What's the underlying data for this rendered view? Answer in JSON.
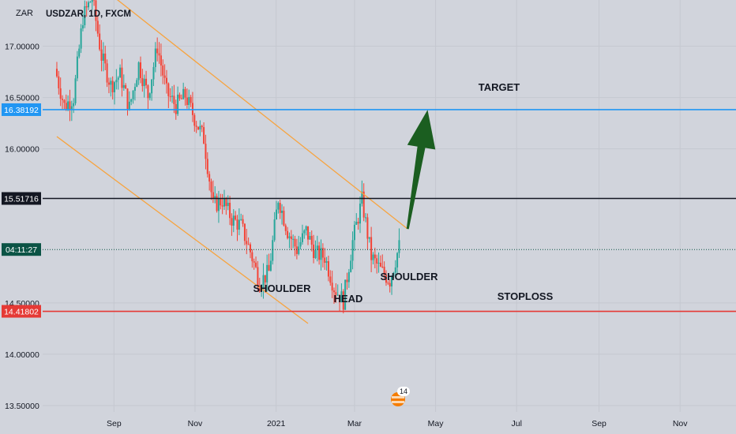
{
  "chart_data": {
    "type": "candlestick",
    "currency": "ZAR",
    "symbol_line": "USDZAR, 1D, FXCM",
    "price_axis": {
      "min": 13.3,
      "max": 17.45,
      "ticks": [
        {
          "value": 17.0,
          "label": "17.00000"
        },
        {
          "value": 16.5,
          "label": "16.50000"
        },
        {
          "value": 16.0,
          "label": "16.00000"
        },
        {
          "value": 14.5,
          "label": "14.50000"
        },
        {
          "value": 14.0,
          "label": "14.00000"
        },
        {
          "value": 13.5,
          "label": "13.50000"
        }
      ]
    },
    "time_axis": {
      "ticks": [
        {
          "label": "Sep",
          "date": "2020-09-01"
        },
        {
          "label": "Nov",
          "date": "2020-11-01"
        },
        {
          "label": "2021",
          "date": "2021-01-01"
        },
        {
          "label": "Mar",
          "date": "2021-03-01"
        },
        {
          "label": "May",
          "date": "2021-05-01"
        },
        {
          "label": "Jul",
          "date": "2021-07-01"
        },
        {
          "label": "Sep",
          "date": "2021-09-01"
        },
        {
          "label": "Nov",
          "date": "2021-11-01"
        }
      ]
    },
    "series": [
      {
        "kind": "daily-close",
        "points": [
          [
            "2020-07-20",
            16.78
          ],
          [
            "2020-07-27",
            16.42
          ],
          [
            "2020-08-03",
            16.5
          ],
          [
            "2020-08-10",
            17.28
          ],
          [
            "2020-08-17",
            17.48
          ],
          [
            "2020-08-24",
            16.9
          ],
          [
            "2020-08-31",
            16.62
          ],
          [
            "2020-09-07",
            16.72
          ],
          [
            "2020-09-14",
            16.4
          ],
          [
            "2020-09-21",
            16.82
          ],
          [
            "2020-09-28",
            16.52
          ],
          [
            "2020-10-05",
            17.0
          ],
          [
            "2020-10-12",
            16.55
          ],
          [
            "2020-10-19",
            16.42
          ],
          [
            "2020-10-26",
            16.52
          ],
          [
            "2020-11-02",
            16.3
          ],
          [
            "2020-11-09",
            16.1
          ],
          [
            "2020-11-16",
            15.45
          ],
          [
            "2020-11-23",
            15.5
          ],
          [
            "2020-11-30",
            15.32
          ],
          [
            "2020-12-07",
            15.25
          ],
          [
            "2020-12-14",
            15.0
          ],
          [
            "2020-12-21",
            14.7
          ],
          [
            "2020-12-28",
            14.8
          ],
          [
            "2021-01-04",
            15.52
          ],
          [
            "2021-01-11",
            15.2
          ],
          [
            "2021-01-18",
            15.02
          ],
          [
            "2021-01-25",
            15.2
          ],
          [
            "2021-02-01",
            14.98
          ],
          [
            "2021-02-08",
            14.95
          ],
          [
            "2021-02-15",
            14.65
          ],
          [
            "2021-02-22",
            14.52
          ],
          [
            "2021-03-01",
            15.1
          ],
          [
            "2021-03-08",
            15.5
          ],
          [
            "2021-03-15",
            14.95
          ],
          [
            "2021-03-22",
            14.82
          ],
          [
            "2021-03-29",
            14.72
          ],
          [
            "2021-04-05",
            15.05
          ]
        ]
      }
    ],
    "horizontal_levels": [
      {
        "name": "TARGET",
        "value": 16.38192,
        "label": "16.38192",
        "color": "#2196f3"
      },
      {
        "name": "",
        "value": 15.51716,
        "label": "15.51716",
        "color": "#131722"
      },
      {
        "name": "STOPLOSS",
        "value": 14.41802,
        "label": "14.41802",
        "color": "#e53935"
      }
    ],
    "last_price": {
      "value": 15.02,
      "countdown": "04:11:27",
      "color": "#0b5345"
    },
    "trend_lines": [
      {
        "from": [
          "2020-08-25",
          17.55
        ],
        "to": [
          "2021-04-10",
          15.22
        ],
        "color": "#f7a440"
      },
      {
        "from": [
          "2020-07-20",
          16.12
        ],
        "to": [
          "2021-01-25",
          14.3
        ],
        "color": "#f7a440"
      }
    ],
    "projection_arrow": {
      "from": [
        "2021-04-10",
        15.22
      ],
      "to": [
        "2021-04-25",
        16.38
      ],
      "color": "#1b5e20"
    },
    "annotations": [
      {
        "text": "TARGET"
      },
      {
        "text": "STOPLOSS"
      },
      {
        "text": "SHOULDER"
      },
      {
        "text": "HEAD"
      },
      {
        "text": "SHOULDER"
      }
    ],
    "event_badge": {
      "count": "14"
    },
    "grid": true,
    "legend": "none"
  }
}
